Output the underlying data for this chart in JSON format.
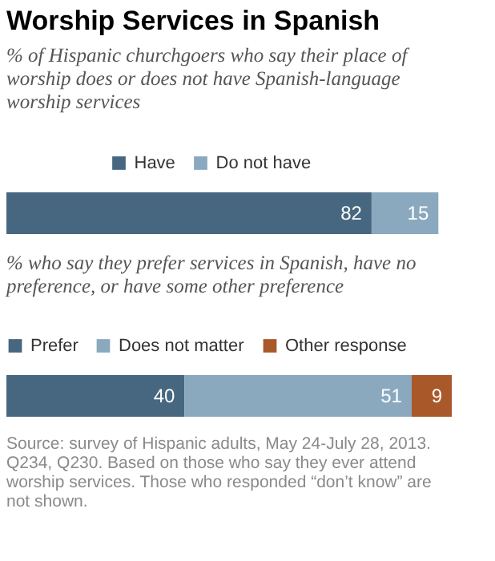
{
  "chart_data": [
    {
      "type": "bar",
      "title": "Worship Services in Spanish",
      "subtitle": "% of Hispanic churchgoers who say their place of worship does or does not have Spanish-language worship services",
      "orientation": "horizontal",
      "stacked": true,
      "data_labels": true,
      "legend": "top",
      "categories": [
        null
      ],
      "series": [
        {
          "name": "Have",
          "color": "#46677f",
          "values": [
            82
          ]
        },
        {
          "name": "Do not have",
          "color": "#8aa9bf",
          "values": [
            15
          ]
        }
      ]
    },
    {
      "type": "bar",
      "subtitle": "% who say they prefer services in Spanish, have no preference, or have some other preference",
      "orientation": "horizontal",
      "stacked": true,
      "data_labels": true,
      "legend": "top",
      "categories": [
        null
      ],
      "series": [
        {
          "name": "Prefer",
          "color": "#46677f",
          "values": [
            40
          ]
        },
        {
          "name": "Does not matter",
          "color": "#8aa9bf",
          "values": [
            51
          ]
        },
        {
          "name": "Other response",
          "color": "#a9582a",
          "values": [
            9
          ]
        }
      ],
      "annotations": [
        "Source: survey of Hispanic adults, May 24-July 28, 2013. Q234, Q230.  Based on those who say they ever attend worship services. Those who responded “don’t know” are not shown."
      ]
    }
  ]
}
